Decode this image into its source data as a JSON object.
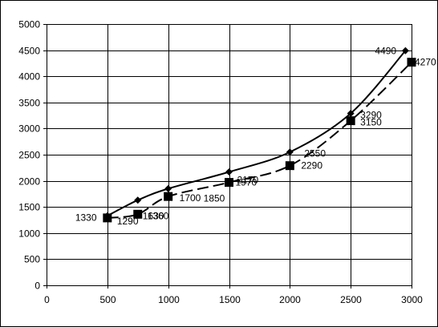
{
  "chart_data": {
    "type": "line",
    "title": "",
    "xlabel": "",
    "ylabel": "",
    "xlim": [
      0,
      3000
    ],
    "ylim": [
      0,
      5000
    ],
    "x_ticks": [
      0,
      500,
      1000,
      1500,
      2000,
      2500,
      3000
    ],
    "y_ticks": [
      0,
      500,
      1000,
      1500,
      2000,
      2500,
      3000,
      3500,
      4000,
      4500,
      5000
    ],
    "grid": true,
    "legend": "none",
    "series": [
      {
        "style": "solid",
        "marker": "diamond",
        "color": "#000000",
        "points": [
          {
            "x": 500,
            "y": 1330,
            "label": "1330"
          },
          {
            "x": 750,
            "y": 1630,
            "label": "1630"
          },
          {
            "x": 1000,
            "y": 1850,
            "label": "1850"
          },
          {
            "x": 1500,
            "y": 2170,
            "label": "2170"
          },
          {
            "x": 2000,
            "y": 2550,
            "label": "2550"
          },
          {
            "x": 2500,
            "y": 3290,
            "label": "3290"
          },
          {
            "x": 2950,
            "y": 4490,
            "label": "4490"
          }
        ]
      },
      {
        "style": "dashed",
        "marker": "square",
        "color": "#000000",
        "points": [
          {
            "x": 500,
            "y": 1290,
            "label": "1290"
          },
          {
            "x": 750,
            "y": 1360,
            "label": "1360"
          },
          {
            "x": 1000,
            "y": 1700,
            "label": "1700"
          },
          {
            "x": 1500,
            "y": 1970,
            "label": "1970"
          },
          {
            "x": 2000,
            "y": 2290,
            "label": "2290"
          },
          {
            "x": 2500,
            "y": 3150,
            "label": "3150"
          },
          {
            "x": 3000,
            "y": 4270,
            "label": "4270"
          }
        ]
      }
    ]
  }
}
